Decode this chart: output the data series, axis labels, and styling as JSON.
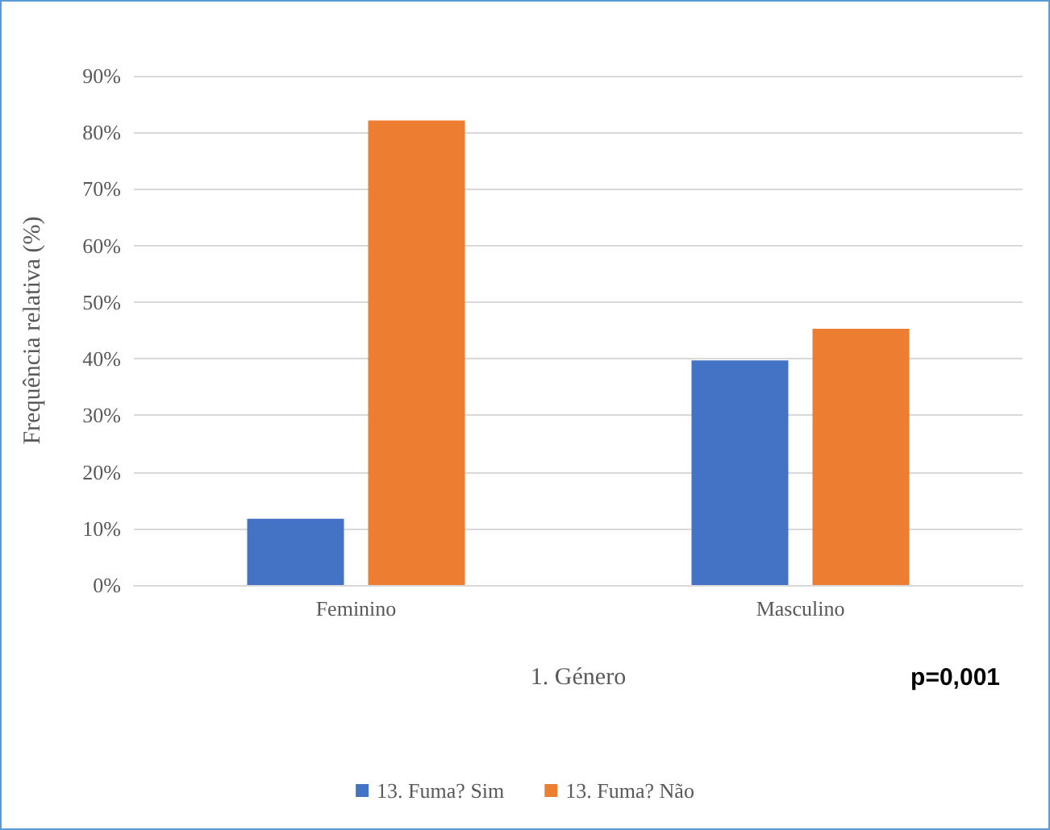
{
  "chart_data": {
    "type": "bar",
    "xlabel": "1. Género",
    "ylabel": "Frequência relativa (%)",
    "categories": [
      "Feminino",
      "Masculino"
    ],
    "series": [
      {
        "name": "13. Fuma? Sim",
        "color": "#4472c4",
        "values": [
          11.7,
          39.7
        ]
      },
      {
        "name": "13. Fuma? Não",
        "color": "#ed7d31",
        "values": [
          82.1,
          45.3
        ]
      }
    ],
    "ylim": [
      0,
      90
    ],
    "yticks": [
      {
        "value": 0,
        "label": "0%"
      },
      {
        "value": 10,
        "label": "10%"
      },
      {
        "value": 20,
        "label": "20%"
      },
      {
        "value": 30,
        "label": "30%"
      },
      {
        "value": 40,
        "label": "40%"
      },
      {
        "value": 50,
        "label": "50%"
      },
      {
        "value": 60,
        "label": "60%"
      },
      {
        "value": 70,
        "label": "70%"
      },
      {
        "value": 80,
        "label": "80%"
      },
      {
        "value": 90,
        "label": "90%"
      }
    ],
    "grid": "y",
    "legend": "bottom",
    "annotations": [
      "p=0,001"
    ]
  }
}
